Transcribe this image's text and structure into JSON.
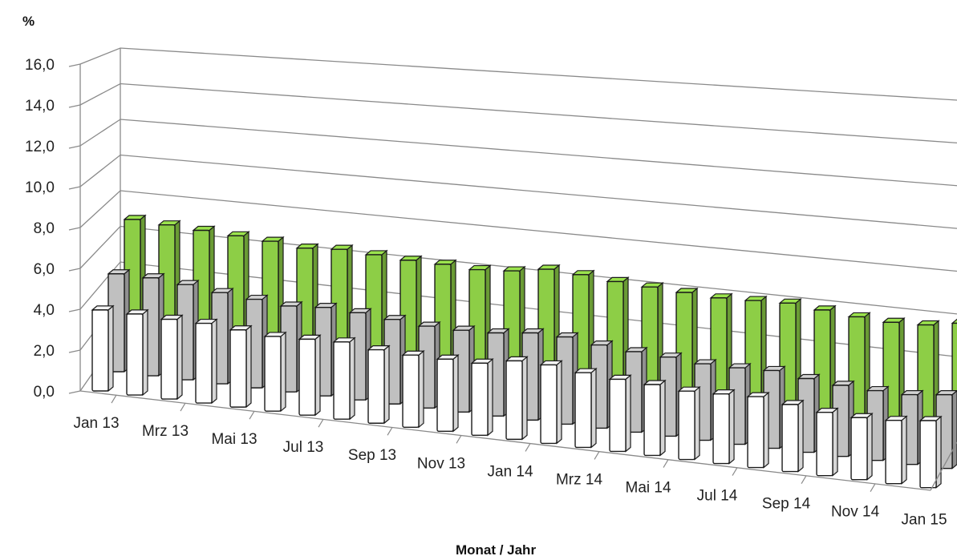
{
  "chart_data": {
    "type": "bar",
    "variant": "3d-clustered-columns",
    "ylabel": "%",
    "xlabel": "Monat / Jahr",
    "ylim": [
      0,
      16
    ],
    "y_ticks": [
      "0,0",
      "2,0",
      "4,0",
      "6,0",
      "8,0",
      "10,0",
      "12,0",
      "14,0",
      "16,0"
    ],
    "grid": true,
    "legend": "none",
    "categories": [
      "Jan 13",
      "Feb 13",
      "Mrz 13",
      "Apr 13",
      "Mai 13",
      "Jun 13",
      "Jul 13",
      "Aug 13",
      "Sep 13",
      "Okt 13",
      "Nov 13",
      "Dez 13",
      "Jan 14",
      "Feb 14",
      "Mrz 14",
      "Apr 14",
      "Mai 14",
      "Jun 14",
      "Jul 14",
      "Aug 14",
      "Sep 14",
      "Okt 14",
      "Nov 14",
      "Dez 14",
      "Jan 15"
    ],
    "x_tick_labels": [
      "Jan 13",
      "Mrz 13",
      "Mai 13",
      "Jul 13",
      "Sep 13",
      "Nov 13",
      "Jan 14",
      "Mrz 14",
      "Mai 14",
      "Jul 14",
      "Sep 14",
      "Nov 14",
      "Jan 15"
    ],
    "series": [
      {
        "color": "#ffffff",
        "values": [
          6.4,
          6.4,
          6.3,
          6.3,
          6.1,
          5.9,
          6.0,
          6.1,
          5.8,
          5.7,
          5.7,
          5.7,
          6.2,
          6.2,
          5.9,
          5.7,
          5.6,
          5.4,
          5.5,
          5.6,
          5.3,
          5.0,
          4.9,
          5.0,
          5.3
        ]
      },
      {
        "color": "#c0c0c0",
        "values": [
          7.3,
          7.3,
          7.1,
          6.8,
          6.6,
          6.4,
          6.6,
          6.5,
          6.3,
          6.1,
          6.1,
          6.2,
          6.5,
          6.5,
          6.2,
          6.0,
          5.9,
          5.7,
          5.7,
          5.8,
          5.5,
          5.3,
          5.2,
          5.2,
          5.5
        ]
      },
      {
        "color": "#8dce46",
        "values": [
          9.5,
          9.4,
          9.3,
          9.2,
          9.1,
          8.9,
          9.1,
          9.0,
          8.9,
          8.9,
          8.8,
          9.0,
          9.4,
          9.3,
          9.1,
          9.0,
          8.9,
          8.8,
          8.9,
          9.0,
          8.8,
          8.6,
          8.5,
          8.6,
          9.0
        ]
      }
    ]
  }
}
